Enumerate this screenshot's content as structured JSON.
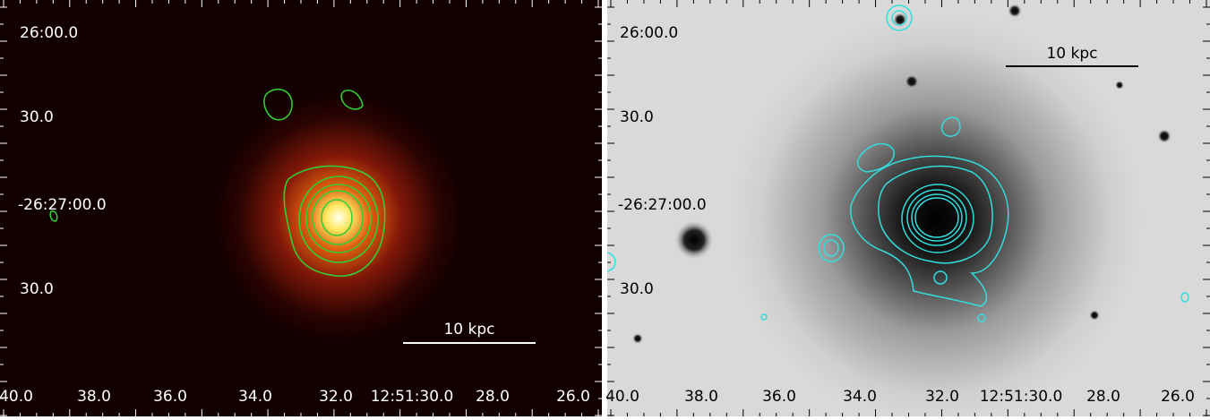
{
  "panels": [
    {
      "y_labels": [
        "26:00.0",
        "30.0",
        "-26:27:00.0",
        "30.0"
      ],
      "x_labels": [
        "40.0",
        "38.0",
        "36.0",
        "34.0",
        "32.0",
        "12:51:30.0",
        "28.0",
        "26.0"
      ],
      "scale_bar": "10 kpc"
    },
    {
      "y_labels": [
        "26:00.0",
        "30.0",
        "-26:27:00.0",
        "30.0"
      ],
      "x_labels": [
        "40.0",
        "38.0",
        "36.0",
        "34.0",
        "32.0",
        "12:51:30.0",
        "28.0",
        "26.0"
      ],
      "scale_bar": "10 kpc"
    }
  ]
}
